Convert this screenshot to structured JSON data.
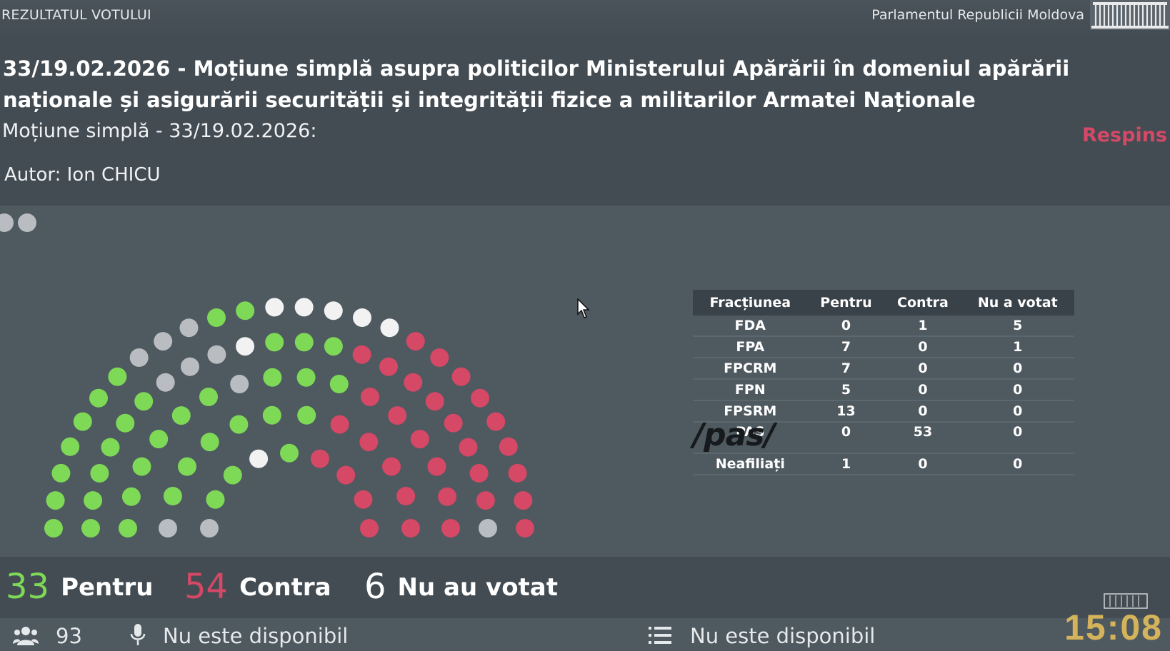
{
  "topbar": {
    "left_label": "REZULTATUL VOTULUI",
    "right_label": "Parlamentul Republicii Moldova"
  },
  "header": {
    "title": "33/19.02.2026 - Moțiune simplă asupra politicilor Ministerului Apărării în domeniul apărării naționale și asigurării securității și integrității fizice a militarilor Armatei Naționale",
    "subtitle": "Moțiune simplă - 33/19.02.2026:",
    "status": "Respins",
    "author": "Autor: Ion CHICU"
  },
  "colors": {
    "pentru": "#7ed957",
    "contra": "#d54866",
    "nu_votat": "#b9bdc1",
    "empty": "#f2f2f2"
  },
  "hemicycle": {
    "legend_dots": [
      "nu_votat",
      "nu_votat"
    ],
    "rows": [
      [
        "p",
        "p",
        "p",
        "p",
        "p",
        "p",
        "p",
        "g",
        "g",
        "g",
        "p",
        "p",
        "w",
        "w",
        "w",
        "w",
        "w",
        "r",
        "r",
        "r",
        "r",
        "r",
        "r",
        "r",
        "r",
        "r"
      ],
      [
        "p",
        "p",
        "p",
        "p",
        "p",
        "p",
        "g",
        "g",
        "g",
        "w",
        "p",
        "p",
        "p",
        "r",
        "r",
        "r",
        "r",
        "r",
        "r",
        "r",
        "r",
        "g"
      ],
      [
        "p",
        "p",
        "p",
        "p",
        "p",
        "p",
        "g",
        "p",
        "p",
        "p",
        "r",
        "r",
        "r",
        "r",
        "r",
        "r"
      ],
      [
        "g",
        "p",
        "p",
        "p",
        "p",
        "p",
        "p",
        "r",
        "r",
        "r",
        "r",
        "r"
      ],
      [
        "g",
        "p",
        "p",
        "w",
        "p",
        "r",
        "r",
        "r",
        "r"
      ]
    ]
  },
  "results_table": {
    "headers": [
      "Fracțiunea",
      "Pentru",
      "Contra",
      "Nu a votat"
    ],
    "rows": [
      {
        "faction": "FDA",
        "pentru": "0",
        "contra": "1",
        "nu_votat": "5"
      },
      {
        "faction": "FPA",
        "pentru": "7",
        "contra": "0",
        "nu_votat": "1"
      },
      {
        "faction": "FPCRM",
        "pentru": "7",
        "contra": "0",
        "nu_votat": "0"
      },
      {
        "faction": "FPN",
        "pentru": "5",
        "contra": "0",
        "nu_votat": "0"
      },
      {
        "faction": "FPSRM",
        "pentru": "13",
        "contra": "0",
        "nu_votat": "0"
      },
      {
        "faction": "PAS",
        "pentru": "0",
        "contra": "53",
        "nu_votat": "0"
      },
      {
        "faction": "Neafiliați",
        "pentru": "1",
        "contra": "0",
        "nu_votat": "0"
      }
    ],
    "pas_logo": "/pas/"
  },
  "totals": {
    "pentru_count": "33",
    "pentru_label": "Pentru",
    "contra_count": "54",
    "contra_label": "Contra",
    "nu_count": "6",
    "nu_label": "Nu au votat"
  },
  "footer": {
    "present_count": "93",
    "mic_status": "Nu este disponibil",
    "list_status": "Nu este disponibil",
    "clock": "15:08"
  },
  "icons": [
    "users-icon",
    "microphone-icon",
    "list-icon",
    "cursor-icon",
    "parliament-logo-icon"
  ]
}
